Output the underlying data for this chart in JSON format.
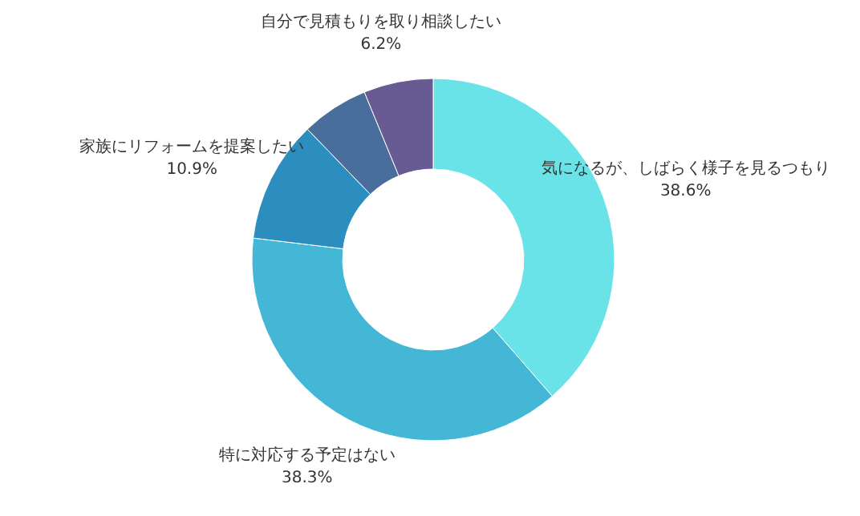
{
  "chart_data": {
    "type": "donut",
    "categories": [
      "気になるが、しばらく様子を見るつもり",
      "特に対応する予定はない",
      "家族にリフォームを提案したい",
      null,
      "自分で見積もりを取り相談したい"
    ],
    "values": [
      38.6,
      38.3,
      10.9,
      6.0,
      6.2
    ],
    "colors": [
      "#6ae3e8",
      "#44b7d7",
      "#2b8ebf",
      "#4a6e9b",
      "#685a92"
    ],
    "value_labels": [
      "38.6%",
      "38.3%",
      "10.9%",
      null,
      "6.2%"
    ]
  }
}
